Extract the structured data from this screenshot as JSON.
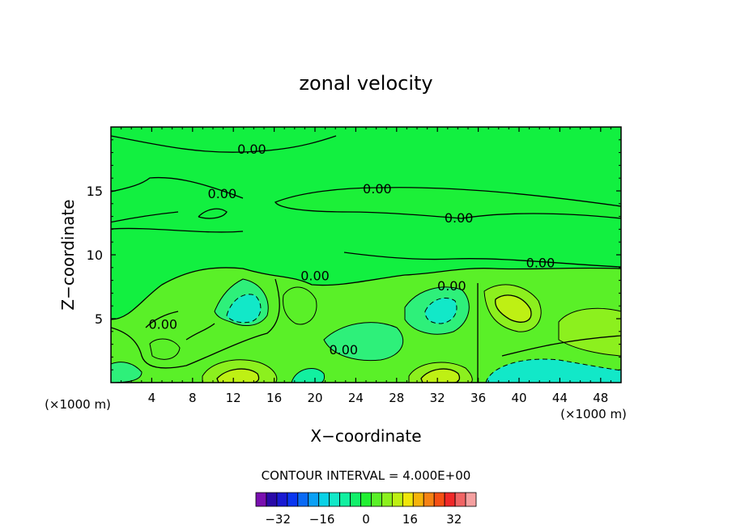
{
  "chart_data": {
    "type": "contour",
    "title": "zonal velocity",
    "xlabel": "X−coordinate",
    "ylabel": "Z−coordinate",
    "x_unit_left": "(×1000 m)",
    "x_unit_right": "(×1000 m)",
    "xlim": [
      0,
      50
    ],
    "ylim": [
      0,
      20
    ],
    "x_ticks": [
      4,
      8,
      12,
      16,
      20,
      24,
      28,
      32,
      36,
      40,
      44,
      48
    ],
    "y_ticks": [
      5,
      10,
      15
    ],
    "contour_interval_label": "CONTOUR INTERVAL = 4.000E+00",
    "contour_labels": [
      {
        "text": "0.00",
        "x": 13.8,
        "z": 18.3
      },
      {
        "text": "0.00",
        "x": 10.9,
        "z": 14.8
      },
      {
        "text": "0.00",
        "x": 26.1,
        "z": 15.2
      },
      {
        "text": "0.00",
        "x": 34.1,
        "z": 12.9
      },
      {
        "text": "0.00",
        "x": 42.1,
        "z": 9.4
      },
      {
        "text": "0.00",
        "x": 20.0,
        "z": 8.4
      },
      {
        "text": "0.00",
        "x": 33.4,
        "z": 7.6
      },
      {
        "text": "0.00",
        "x": 5.1,
        "z": 4.6
      },
      {
        "text": "0.00",
        "x": 22.8,
        "z": 2.6
      }
    ],
    "colorbar": {
      "levels": [
        -40,
        -36,
        -32,
        -28,
        -24,
        -20,
        -16,
        -12,
        -8,
        -4,
        0,
        4,
        8,
        12,
        16,
        20,
        24,
        28,
        32,
        36,
        40
      ],
      "colors": [
        "#7a10b0",
        "#2a0aa8",
        "#1a1ad2",
        "#0a36f0",
        "#0a6af5",
        "#0aa0f5",
        "#0ad2e6",
        "#12e8c8",
        "#12f0a0",
        "#12f06a",
        "#22f032",
        "#5af028",
        "#8cf01e",
        "#bef014",
        "#f0e60a",
        "#f5b40a",
        "#f58214",
        "#f55014",
        "#f02828",
        "#f06464",
        "#f5a0a0"
      ],
      "tick_labels": [
        "−32",
        "−16",
        "0",
        "16",
        "32"
      ],
      "tick_values": [
        -32,
        -16,
        0,
        16,
        32
      ]
    }
  }
}
